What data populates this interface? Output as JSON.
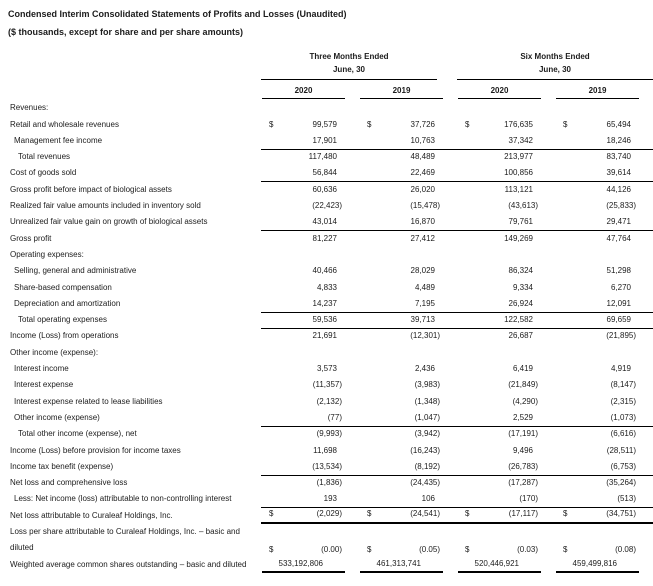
{
  "header": {
    "title": "Condensed Interim Consolidated Statements of Profits and Losses (Unaudited)",
    "subtitle": "($ thousands, except for share and per share amounts)"
  },
  "colors": {
    "text": "#1c1c1c",
    "rule": "#000000",
    "background": "#ffffff"
  },
  "table": {
    "groups": [
      {
        "title": "Three Months Ended",
        "subtitle": "June, 30"
      },
      {
        "title": "Six Months Ended",
        "subtitle": "June, 30"
      }
    ],
    "years": [
      "2020",
      "2019",
      "2020",
      "2019"
    ],
    "rows": [
      {
        "label": "Revenues:",
        "indent": 0,
        "values": [
          "",
          "",
          "",
          ""
        ]
      },
      {
        "label": "Retail and wholesale revenues",
        "indent": 0,
        "dollar": true,
        "values": [
          "99,579",
          "37,726",
          "176,635",
          "65,494"
        ]
      },
      {
        "label": "Management fee income",
        "indent": 1,
        "values": [
          "17,901",
          "10,763",
          "37,342",
          "18,246"
        ]
      },
      {
        "label": "Total revenues",
        "indent": 2,
        "rule_above": true,
        "values": [
          "117,480",
          "48,489",
          "213,977",
          "83,740"
        ]
      },
      {
        "label": "Cost of goods sold",
        "indent": 0,
        "values": [
          "56,844",
          "22,469",
          "100,856",
          "39,614"
        ]
      },
      {
        "label": "Gross profit before impact of biological assets",
        "indent": 0,
        "rule_above": true,
        "values": [
          "60,636",
          "26,020",
          "113,121",
          "44,126"
        ]
      },
      {
        "label": "Realized fair value amounts included in inventory sold",
        "indent": 0,
        "values": [
          "(22,423)",
          "(15,478)",
          "(43,613)",
          "(25,833)"
        ]
      },
      {
        "label": "Unrealized fair value gain on growth of biological assets",
        "indent": 0,
        "values": [
          "43,014",
          "16,870",
          "79,761",
          "29,471"
        ]
      },
      {
        "label": "Gross profit",
        "indent": 0,
        "rule_above": true,
        "values": [
          "81,227",
          "27,412",
          "149,269",
          "47,764"
        ]
      },
      {
        "label": "Operating expenses:",
        "indent": 0,
        "values": [
          "",
          "",
          "",
          ""
        ]
      },
      {
        "label": "Selling, general and administrative",
        "indent": 1,
        "values": [
          "40,466",
          "28,029",
          "86,324",
          "51,298"
        ]
      },
      {
        "label": "Share-based compensation",
        "indent": 1,
        "values": [
          "4,833",
          "4,489",
          "9,334",
          "6,270"
        ]
      },
      {
        "label": "Depreciation and amortization",
        "indent": 1,
        "values": [
          "14,237",
          "7,195",
          "26,924",
          "12,091"
        ]
      },
      {
        "label": "Total operating expenses",
        "indent": 2,
        "rule_above": true,
        "values": [
          "59,536",
          "39,713",
          "122,582",
          "69,659"
        ]
      },
      {
        "label": "Income (Loss) from operations",
        "indent": 0,
        "rule_above": true,
        "values": [
          "21,691",
          "(12,301)",
          "26,687",
          "(21,895)"
        ]
      },
      {
        "label": "Other income (expense):",
        "indent": 0,
        "values": [
          "",
          "",
          "",
          ""
        ]
      },
      {
        "label": "Interest income",
        "indent": 1,
        "values": [
          "3,573",
          "2,436",
          "6,419",
          "4,919"
        ]
      },
      {
        "label": "Interest expense",
        "indent": 1,
        "values": [
          "(11,357)",
          "(3,983)",
          "(21,849)",
          "(8,147)"
        ]
      },
      {
        "label": "Interest expense related to lease liabilities",
        "indent": 1,
        "values": [
          "(2,132)",
          "(1,348)",
          "(4,290)",
          "(2,315)"
        ]
      },
      {
        "label": "Other income (expense)",
        "indent": 1,
        "values": [
          "(77)",
          "(1,047)",
          "2,529",
          "(1,073)"
        ]
      },
      {
        "label": "Total other income (expense), net",
        "indent": 2,
        "rule_above": true,
        "values": [
          "(9,993)",
          "(3,942)",
          "(17,191)",
          "(6,616)"
        ]
      },
      {
        "label": "Income (Loss) before provision for income taxes",
        "indent": 0,
        "values": [
          "11,698",
          "(16,243)",
          "9,496",
          "(28,511)"
        ]
      },
      {
        "label": "Income tax benefit (expense)",
        "indent": 0,
        "values": [
          "(13,534)",
          "(8,192)",
          "(26,783)",
          "(6,753)"
        ]
      },
      {
        "label": "Net loss and comprehensive loss",
        "indent": 0,
        "rule_above": true,
        "values": [
          "(1,836)",
          "(24,435)",
          "(17,287)",
          "(35,264)"
        ]
      },
      {
        "label": "Less: Net income (loss) attributable to non-controlling interest",
        "indent": 1,
        "values": [
          "193",
          "106",
          "(170)",
          "(513)"
        ]
      },
      {
        "label": "Net loss attributable to Curaleaf Holdings, Inc.",
        "indent": 0,
        "dollar": true,
        "rule_above": true,
        "rule_below": "thick",
        "values": [
          "(2,029)",
          "(24,541)",
          "(17,117)",
          "(34,751)"
        ]
      },
      {
        "label": "Loss per share attributable to Curaleaf Holdings, Inc. – basic and\ndiluted",
        "indent": 0,
        "dollar": true,
        "tall": true,
        "values": [
          "(0.00)",
          "(0.05)",
          "(0.03)",
          "(0.08)"
        ]
      },
      {
        "label": "Weighted average common shares outstanding – basic and diluted",
        "indent": 0,
        "rule_below": "cols",
        "values": [
          "533,192,806",
          "461,313,741",
          "520,446,921",
          "459,499,816"
        ]
      }
    ]
  }
}
